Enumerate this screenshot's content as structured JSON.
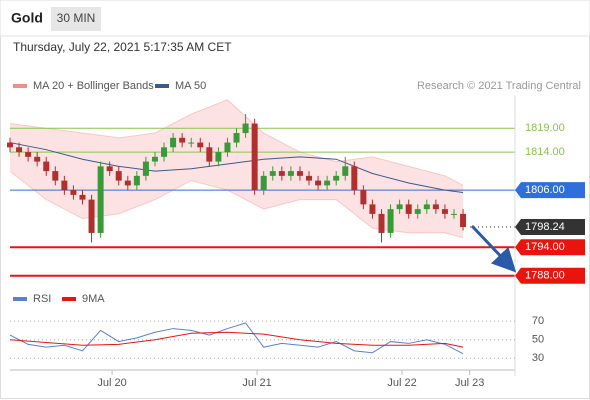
{
  "chart_data": {
    "type": "candlestick",
    "title": "Gold",
    "subtitle": "30 MIN",
    "timestamp": "Thursday, July 22, 2021 5:17:35 AM CET",
    "attribution": "Research © 2021 Trading Central",
    "up_color": "#3a9a3a",
    "down_color": "#b03030",
    "xlim": [
      0,
      83.6
    ],
    "xticks": [
      {
        "value": 16.9,
        "label": "Jul 20"
      },
      {
        "value": 40.9,
        "label": "Jul 21"
      },
      {
        "value": 64.9,
        "label": "Jul 22"
      },
      {
        "value": 76.1,
        "label": "Jul 23"
      }
    ],
    "ylim": [
      1785,
      1826
    ],
    "x": [
      0,
      1.5,
      3,
      4.5,
      6,
      7.5,
      9,
      10.5,
      12,
      13.5,
      15,
      16.5,
      18,
      19.5,
      21,
      22.5,
      24,
      25.5,
      27,
      28.5,
      30,
      31.5,
      33,
      34.5,
      36,
      37.5,
      39,
      40.5,
      42,
      43.5,
      45,
      46.5,
      48,
      49.5,
      51,
      52.5,
      54,
      55.5,
      57,
      58.5,
      60,
      61.5,
      63,
      64.5,
      66,
      67.5,
      69,
      70.5,
      72,
      73.5,
      75
    ],
    "open": [
      1816,
      1815,
      1814,
      1813,
      1812,
      1810,
      1808,
      1806,
      1805,
      1804,
      1797,
      1811,
      1810,
      1808,
      1807,
      1809,
      1812,
      1813,
      1815,
      1817,
      1816,
      1816,
      1815,
      1812,
      1814,
      1816,
      1818,
      1820,
      1806,
      1809,
      1810,
      1809,
      1810,
      1809,
      1808,
      1807,
      1808,
      1809,
      1811,
      1806,
      1803,
      1801,
      1797,
      1802,
      1803,
      1801,
      1802,
      1803,
      1802,
      1801,
      1801
    ],
    "high": [
      1817,
      1816,
      1815,
      1814,
      1813,
      1811,
      1809,
      1807,
      1806,
      1805,
      1812,
      1812,
      1811,
      1809,
      1810,
      1813,
      1814,
      1816,
      1818,
      1818,
      1817,
      1817,
      1816,
      1815,
      1817,
      1819,
      1822,
      1821,
      1810,
      1811,
      1811,
      1811,
      1811,
      1810,
      1809,
      1809,
      1810,
      1813,
      1812,
      1807,
      1804,
      1802,
      1803,
      1804,
      1804,
      1803,
      1804,
      1804,
      1803,
      1802,
      1802
    ],
    "low": [
      1814,
      1813,
      1812,
      1811,
      1809,
      1807,
      1805,
      1804,
      1803,
      1795,
      1796,
      1809,
      1807,
      1806,
      1806,
      1808,
      1811,
      1812,
      1814,
      1815,
      1815,
      1814,
      1811,
      1811,
      1813,
      1815,
      1817,
      1805,
      1805,
      1808,
      1808,
      1808,
      1808,
      1807,
      1806,
      1806,
      1807,
      1808,
      1805,
      1802,
      1800,
      1795,
      1796,
      1801,
      1800,
      1800,
      1801,
      1801,
      1800,
      1800,
      1797.5
    ],
    "close": [
      1815,
      1814,
      1813,
      1812,
      1810,
      1808,
      1806,
      1805,
      1804,
      1797,
      1811,
      1810,
      1808,
      1807,
      1809,
      1812,
      1813,
      1815,
      1817,
      1816,
      1816,
      1815,
      1812,
      1814,
      1816,
      1818,
      1820,
      1806,
      1809,
      1810,
      1809,
      1810,
      1809,
      1808,
      1807,
      1808,
      1809,
      1811,
      1806,
      1803,
      1801,
      1797,
      1802,
      1803,
      1801,
      1802,
      1803,
      1802,
      1801,
      1801,
      1798.24
    ],
    "overlay_x": [
      0,
      6,
      12,
      18,
      24,
      30,
      36,
      42,
      48,
      54,
      60,
      66,
      72,
      75
    ],
    "bollinger": {
      "name": "MA 20 + Bollinger Bands",
      "color": "#f28b8b",
      "upper": [
        1820,
        1819,
        1818,
        1817,
        1818,
        1822,
        1825,
        1818,
        1814,
        1812,
        1813,
        1811,
        1809,
        1807
      ],
      "lower": [
        1810,
        1804,
        1800,
        1801,
        1804,
        1808,
        1806,
        1802,
        1804,
        1804,
        1798,
        1797,
        1797,
        1796
      ]
    },
    "ma50": {
      "name": "MA 50",
      "color": "#3c5a8c",
      "values": [
        1816,
        1814.5,
        1812.5,
        1811,
        1810,
        1810.5,
        1811.5,
        1812.5,
        1813,
        1812.5,
        1809.5,
        1807.5,
        1806,
        1805.5
      ]
    },
    "levels": [
      {
        "value": 1819,
        "label": "1819.00",
        "color": "#8cc152",
        "style": "text"
      },
      {
        "value": 1814,
        "label": "1814.00",
        "color": "#8cc152",
        "style": "text"
      },
      {
        "value": 1806,
        "label": "1806.00",
        "color": "#2f6fdc",
        "style": "tag"
      },
      {
        "value": 1798.24,
        "label": "1798.24",
        "color": "#333333",
        "style": "dotted-tag"
      },
      {
        "value": 1794,
        "label": "1794.00",
        "color": "#e8150f",
        "style": "tag"
      },
      {
        "value": 1788,
        "label": "1788.00",
        "color": "#e8150f",
        "style": "tag"
      }
    ],
    "rsi": {
      "ylim": [
        12,
        82
      ],
      "yticks": [
        70,
        50,
        30
      ],
      "series": [
        {
          "name": "RSI",
          "color": "#5b7fd6",
          "x": [
            0,
            3,
            6,
            9,
            12,
            15,
            18,
            21,
            24,
            27,
            30,
            33,
            36,
            39,
            42,
            45,
            48,
            51,
            54,
            57,
            60,
            63,
            66,
            69,
            72,
            75
          ],
          "values": [
            55,
            45,
            42,
            44,
            38,
            60,
            48,
            52,
            58,
            62,
            60,
            55,
            62,
            68,
            42,
            46,
            44,
            42,
            48,
            38,
            36,
            48,
            46,
            50,
            45,
            35
          ]
        },
        {
          "name": "9MA",
          "color": "#e8150f",
          "x": [
            0,
            6,
            12,
            18,
            24,
            30,
            36,
            42,
            48,
            54,
            60,
            66,
            72,
            75
          ],
          "values": [
            50,
            47,
            44,
            45,
            50,
            57,
            58,
            56,
            50,
            46,
            44,
            44,
            46,
            42
          ]
        }
      ]
    }
  }
}
